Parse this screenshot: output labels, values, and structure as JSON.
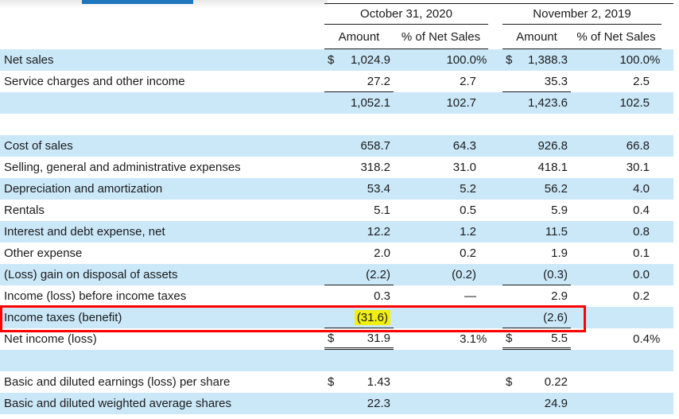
{
  "colors": {
    "accent_blue": "#1e76bc",
    "row_blue": "#cbe8f9",
    "highlight_yellow": "#f0ef12",
    "annotation_red": "#fe0000",
    "rule_dark": "#1a1a1a"
  },
  "table": {
    "col_groups": [
      {
        "title": "October 31, 2020",
        "amount_label": "Amount",
        "pct_label": "% of Net Sales"
      },
      {
        "title": "November 2, 2019",
        "amount_label": "Amount",
        "pct_label": "% of Net Sales"
      }
    ],
    "rows": [
      {
        "label": "Net sales",
        "cur1": "$",
        "amt1": "1,024.9",
        "pct1": "100.0",
        "pct1_suf": "%",
        "cur2": "$",
        "amt2": "1,388.3",
        "pct2": "100.0",
        "pct2_suf": "%",
        "bg": "blue"
      },
      {
        "label": "Service charges and other income",
        "amt1": "27.2",
        "pct1": "2.7",
        "amt2": "35.3",
        "pct2": "2.5",
        "bg": "white",
        "amount_rule": true
      },
      {
        "label": "",
        "amt1": "1,052.1",
        "pct1": "102.7",
        "amt2": "1,423.6",
        "pct2": "102.5",
        "bg": "blue"
      },
      {
        "label": "",
        "bg": "white"
      },
      {
        "label": "Cost of sales",
        "amt1": "658.7",
        "pct1": "64.3",
        "amt2": "926.8",
        "pct2": "66.8",
        "bg": "blue"
      },
      {
        "label": "Selling, general and administrative expenses",
        "amt1": "318.2",
        "pct1": "31.0",
        "amt2": "418.1",
        "pct2": "30.1",
        "bg": "white"
      },
      {
        "label": "Depreciation and amortization",
        "amt1": "53.4",
        "pct1": "5.2",
        "amt2": "56.2",
        "pct2": "4.0",
        "bg": "blue"
      },
      {
        "label": "Rentals",
        "amt1": "5.1",
        "pct1": "0.5",
        "amt2": "5.9",
        "pct2": "0.4",
        "bg": "white"
      },
      {
        "label": "Interest and debt expense, net",
        "amt1": "12.2",
        "pct1": "1.2",
        "amt2": "11.5",
        "pct2": "0.8",
        "bg": "blue"
      },
      {
        "label": "Other expense",
        "amt1": "2.0",
        "pct1": "0.2",
        "amt2": "1.9",
        "pct2": "0.1",
        "bg": "white"
      },
      {
        "label": "(Loss) gain on disposal of assets",
        "amt1": "(2.2)",
        "pct1": "(0.2)",
        "amt2": "(0.3)",
        "pct2": "0.0",
        "bg": "blue",
        "amount_rule": true
      },
      {
        "label": "Income (loss) before income taxes",
        "amt1": "0.3",
        "pct1": "—",
        "amt2": "2.9",
        "pct2": "0.2",
        "bg": "white"
      },
      {
        "label": "Income taxes (benefit)",
        "amt1": "(31.6)",
        "amt2": "(2.6)",
        "bg": "blue",
        "amount_rule": true,
        "highlight_2020_amount": true,
        "red_box": true
      },
      {
        "label": "Net income (loss)",
        "cur1": "$",
        "amt1": "31.9",
        "pct1": "3.1",
        "pct1_suf": "%",
        "cur2": "$",
        "amt2": "5.5",
        "pct2": "0.4",
        "pct2_suf": "%",
        "bg": "white",
        "double_rule": true
      },
      {
        "label": "",
        "bg": "blue"
      },
      {
        "label": "Basic and diluted earnings (loss) per share",
        "cur1": "$",
        "amt1": "1.43",
        "cur2": "$",
        "amt2": "0.22",
        "bg": "white"
      },
      {
        "label": "Basic and diluted weighted average shares",
        "amt1": "22.3",
        "amt2": "24.9",
        "bg": "blue"
      }
    ]
  }
}
